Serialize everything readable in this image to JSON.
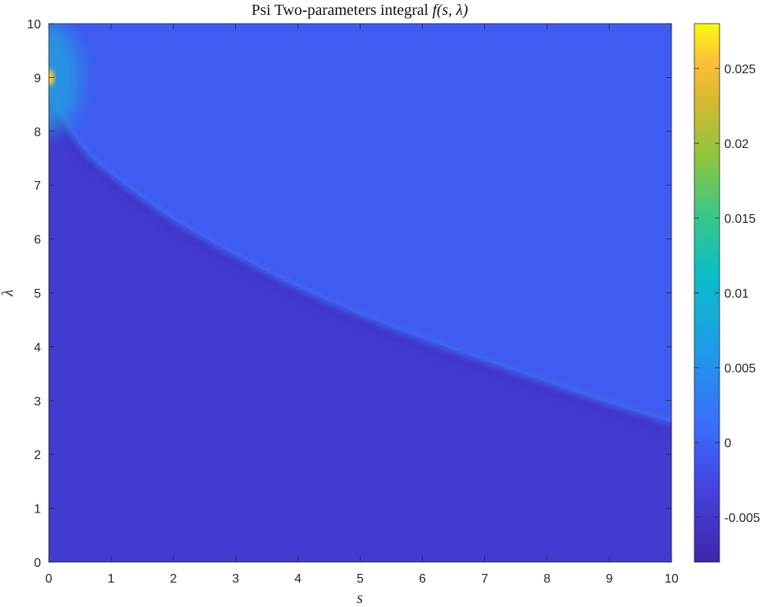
{
  "chart_data": {
    "type": "heatmap",
    "title_text": "Psi Two-parameters integral ",
    "title_math": "f(s, λ)",
    "xlabel": "s",
    "ylabel": "λ",
    "xlim": [
      0,
      10
    ],
    "ylim": [
      0,
      10
    ],
    "x_ticks": [
      "0",
      "1",
      "2",
      "3",
      "4",
      "5",
      "6",
      "7",
      "8",
      "9",
      "10"
    ],
    "y_ticks": [
      "0",
      "1",
      "2",
      "3",
      "4",
      "5",
      "6",
      "7",
      "8",
      "9",
      "10"
    ],
    "colorbar": {
      "range": [
        -0.008,
        0.028
      ],
      "ticks": [
        {
          "value": -0.005,
          "label": "-0.005"
        },
        {
          "value": 0,
          "label": "0"
        },
        {
          "value": 0.005,
          "label": "0.005"
        },
        {
          "value": 0.01,
          "label": "0.01"
        },
        {
          "value": 0.015,
          "label": "0.015"
        },
        {
          "value": 0.02,
          "label": "0.02"
        },
        {
          "value": 0.025,
          "label": "0.025"
        }
      ],
      "colormap": "parula"
    },
    "boundary_curve": {
      "s": [
        0,
        0.5,
        1,
        2,
        3,
        4,
        5,
        6,
        7,
        8,
        9,
        10
      ],
      "lambda": [
        8.7,
        7.7,
        7.2,
        6.35,
        5.7,
        5.1,
        4.6,
        4.15,
        3.75,
        3.35,
        2.95,
        2.6
      ]
    },
    "region_values": {
      "below_curve": -0.0045,
      "above_curve": -0.0005,
      "near_origin_peak": 0.026,
      "peak_location": {
        "s": 0,
        "lambda": 9.0
      }
    }
  }
}
